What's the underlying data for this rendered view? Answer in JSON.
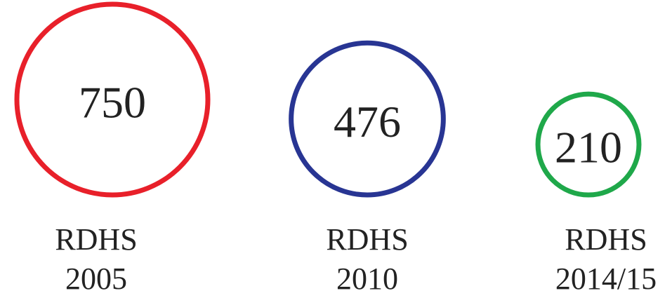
{
  "chart_data": {
    "type": "bubble",
    "categories": [
      "RDHS 2005",
      "RDHS 2010",
      "RDHS 2014/15"
    ],
    "values": [
      750,
      476,
      210
    ],
    "colors": [
      "#e8202a",
      "#283593",
      "#1fa84a"
    ]
  }
}
